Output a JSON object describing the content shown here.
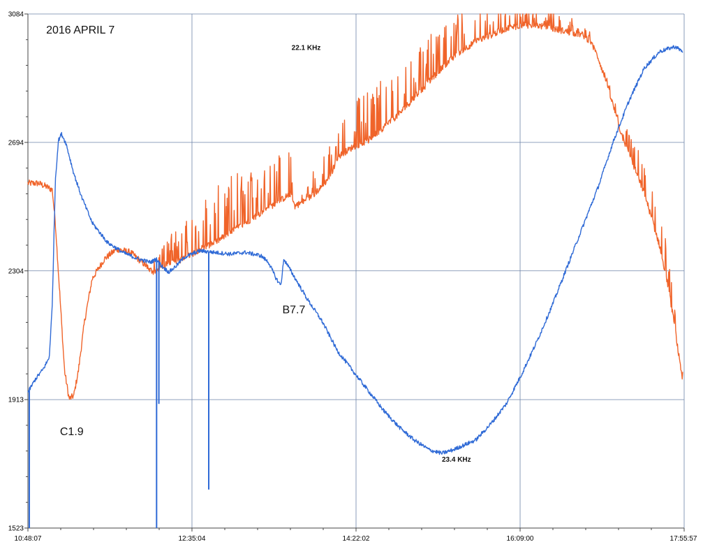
{
  "chart_data": {
    "type": "line",
    "title": "",
    "xlabel": "",
    "ylabel": "",
    "x_ticks": [
      "10:48:07",
      "12:35:04",
      "14:22:02",
      "16:09:00",
      "17:55:57"
    ],
    "x_range": [
      "10:48:07",
      "17:55:57"
    ],
    "y_ticks": [
      1523,
      1913,
      2304,
      2694,
      3084
    ],
    "ylim": [
      1523,
      3084
    ],
    "grid": true,
    "legend": "none",
    "annotations": [
      {
        "text": "2016 APRIL 7",
        "x": "11:00:00",
        "y": 3025,
        "style": "large"
      },
      {
        "text": "22.1 KHz",
        "x": "13:40:00",
        "y": 2975,
        "style": "bold"
      },
      {
        "text": "B7.7",
        "x": "13:34:00",
        "y": 2175,
        "style": "large"
      },
      {
        "text": "C1.9",
        "x": "11:09:00",
        "y": 1805,
        "style": "large"
      },
      {
        "text": "23.4 KHz",
        "x": "15:18:00",
        "y": 1725,
        "style": "bold"
      }
    ],
    "series": [
      {
        "color": "#f0642a",
        "noise": 10,
        "spikes": "upward",
        "x": [
          "10:48:07",
          "10:55:00",
          "11:00:00",
          "11:04:00",
          "11:06:00",
          "11:08:00",
          "11:10:00",
          "11:12:00",
          "11:15:00",
          "11:18:00",
          "11:21:00",
          "11:25:00",
          "11:30:00",
          "11:38:00",
          "11:46:00",
          "11:55:00",
          "12:00:00",
          "12:05:00",
          "12:10:00",
          "12:15:00",
          "12:20:00",
          "12:30:00",
          "12:40:00",
          "12:50:00",
          "13:00:00",
          "13:10:00",
          "13:20:00",
          "13:30:00",
          "13:40:00",
          "13:42:00",
          "13:50:00",
          "14:00:00",
          "14:06:00",
          "14:10:00",
          "14:20:00",
          "14:25:00",
          "14:30:00",
          "14:40:00",
          "14:50:00",
          "15:00:00",
          "15:10:00",
          "15:20:00",
          "15:30:00",
          "15:40:00",
          "15:50:00",
          "16:00:00",
          "16:10:00",
          "16:20:00",
          "16:30:00",
          "16:40:00",
          "16:50:00",
          "16:55:00",
          "17:00:00",
          "17:05:00",
          "17:10:00",
          "17:15:00",
          "17:20:00",
          "17:25:00",
          "17:30:00",
          "17:35:00",
          "17:40:00",
          "17:45:00",
          "17:50:00",
          "17:55:00"
        ],
        "y": [
          2570,
          2570,
          2560,
          2550,
          2450,
          2300,
          2150,
          2000,
          1915,
          1925,
          2000,
          2150,
          2280,
          2340,
          2370,
          2360,
          2340,
          2320,
          2300,
          2310,
          2330,
          2340,
          2370,
          2390,
          2420,
          2450,
          2480,
          2510,
          2540,
          2500,
          2520,
          2560,
          2600,
          2650,
          2680,
          2690,
          2700,
          2740,
          2780,
          2830,
          2880,
          2930,
          2970,
          3000,
          3020,
          3040,
          3050,
          3050,
          3040,
          3030,
          3020,
          3000,
          2950,
          2880,
          2800,
          2720,
          2660,
          2600,
          2540,
          2460,
          2380,
          2270,
          2130,
          1960
        ],
        "spike_height": [
          0,
          0,
          0,
          0,
          0,
          0,
          0,
          0,
          0,
          0,
          0,
          0,
          0,
          0,
          0,
          0,
          0,
          0,
          30,
          60,
          90,
          120,
          150,
          160,
          170,
          180,
          160,
          150,
          150,
          0,
          40,
          100,
          120,
          140,
          150,
          150,
          160,
          160,
          150,
          150,
          140,
          130,
          120,
          110,
          100,
          80,
          70,
          60,
          50,
          40,
          30,
          20,
          20,
          20,
          30,
          40,
          60,
          80,
          90,
          100,
          100,
          100,
          90,
          60
        ]
      },
      {
        "color": "#2f6ad6",
        "noise": 6,
        "spikes": "downward",
        "x": [
          "10:48:07",
          "10:53:00",
          "10:58:00",
          "11:02:00",
          "11:04:00",
          "11:06:00",
          "11:08:00",
          "11:10:00",
          "11:13:00",
          "11:18:00",
          "11:23:00",
          "11:30:00",
          "11:40:00",
          "11:50:00",
          "12:00:00",
          "12:08:00",
          "12:12:00",
          "12:15:00",
          "12:20:00",
          "12:25:00",
          "12:30:00",
          "12:40:00",
          "12:50:00",
          "13:00:00",
          "13:10:00",
          "13:20:00",
          "13:25:00",
          "13:30:00",
          "13:33:00",
          "13:35:00",
          "13:40:00",
          "13:50:00",
          "14:00:00",
          "14:10:00",
          "14:20:00",
          "14:30:00",
          "14:40:00",
          "14:50:00",
          "15:00:00",
          "15:10:00",
          "15:18:00",
          "15:25:00",
          "15:30:00",
          "15:35:00",
          "15:40:00",
          "15:50:00",
          "16:00:00",
          "16:10:00",
          "16:20:00",
          "16:30:00",
          "16:40:00",
          "16:50:00",
          "17:00:00",
          "17:10:00",
          "17:20:00",
          "17:30:00",
          "17:40:00",
          "17:50:00",
          "17:55:00"
        ],
        "y": [
          1935,
          1975,
          2005,
          2040,
          2200,
          2580,
          2700,
          2720,
          2690,
          2600,
          2530,
          2450,
          2390,
          2360,
          2340,
          2330,
          2340,
          2320,
          2300,
          2320,
          2345,
          2365,
          2360,
          2355,
          2360,
          2350,
          2330,
          2280,
          2260,
          2340,
          2300,
          2220,
          2150,
          2060,
          2000,
          1940,
          1880,
          1830,
          1790,
          1760,
          1750,
          1760,
          1770,
          1780,
          1790,
          1840,
          1900,
          1990,
          2090,
          2200,
          2320,
          2440,
          2560,
          2700,
          2820,
          2920,
          2970,
          2985,
          2970
        ],
        "spikes_at": [
          {
            "x": "10:49:00",
            "y": 1523
          },
          {
            "x": "12:12:00",
            "y": 1523
          },
          {
            "x": "12:13:30",
            "y": 1900
          },
          {
            "x": "12:46:00",
            "y": 1640
          }
        ]
      }
    ]
  }
}
